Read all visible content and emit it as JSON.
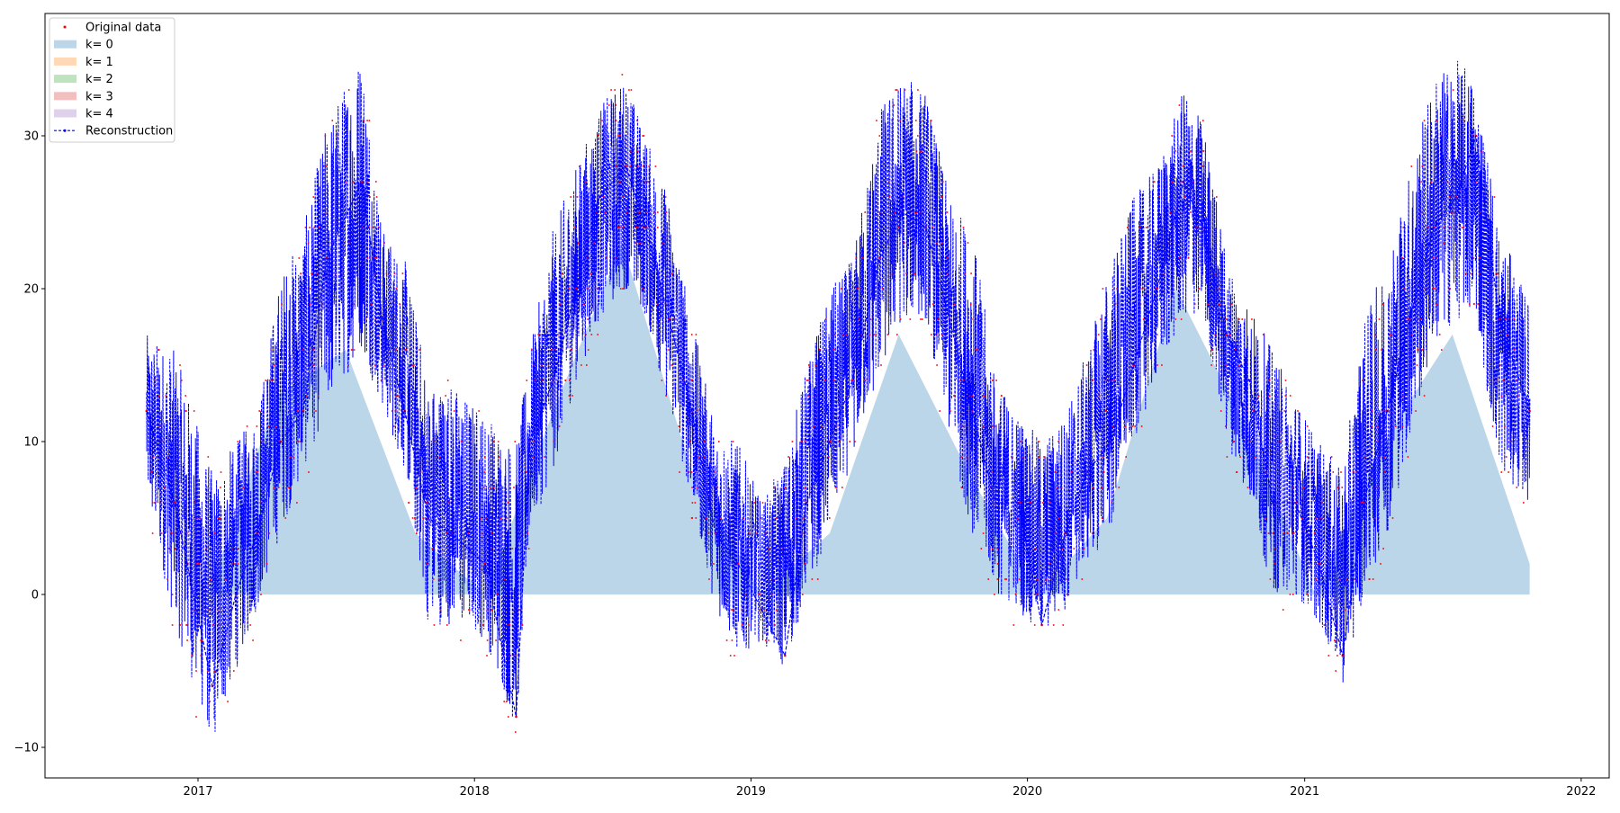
{
  "colors": {
    "original_data": "#ff0000",
    "k0": "#1f77b4",
    "k1": "#ff7f0e",
    "k2": "#2ca02c",
    "k3": "#d62728",
    "k4": "#9467bd",
    "reconstruction": "#0000ff"
  },
  "chart_data": {
    "type": "area",
    "title": "",
    "xlabel": "",
    "ylabel": "",
    "x_unit": "date",
    "xlim": [
      "2016-06-13",
      "2022-02-07"
    ],
    "ylim": [
      -12,
      38
    ],
    "xticks": [
      "2017-01-01",
      "2018-01-01",
      "2019-01-01",
      "2020-01-01",
      "2021-01-01",
      "2022-01-01"
    ],
    "xtick_labels": [
      "2017",
      "2018",
      "2019",
      "2020",
      "2021",
      "2022"
    ],
    "yticks": [
      -10,
      0,
      10,
      20,
      30
    ],
    "ytick_labels": [
      "−10",
      "0",
      "10",
      "20",
      "30"
    ],
    "grid": false,
    "legend_position": "upper-left",
    "legend": [
      "Original data",
      "k= 0",
      "k= 1",
      "k= 2",
      "k= 3",
      "k= 4",
      "Reconstruction"
    ],
    "series": [
      {
        "name": "k= 0",
        "kind": "area",
        "x": [
          "2016-10-25",
          "2017-01-15",
          "2017-04-15",
          "2017-07-15",
          "2017-10-15",
          "2018-01-15",
          "2018-04-15",
          "2018-07-15",
          "2018-10-15",
          "2019-01-15",
          "2019-04-15",
          "2019-07-15",
          "2019-10-15",
          "2020-01-15",
          "2020-04-15",
          "2020-07-15",
          "2020-10-15",
          "2021-01-15",
          "2021-04-15",
          "2021-07-15",
          "2021-10-25"
        ],
        "values": [
          0,
          0,
          13,
          16,
          4,
          0,
          12,
          23,
          8,
          0,
          4,
          17,
          8,
          0,
          5,
          20,
          11,
          0,
          10,
          17,
          2
        ]
      },
      {
        "name": "k= 1",
        "kind": "area",
        "x": [],
        "values": []
      },
      {
        "name": "k= 2",
        "kind": "area",
        "x": [],
        "values": []
      },
      {
        "name": "k= 3",
        "kind": "area",
        "x": [],
        "values": []
      },
      {
        "name": "k= 4",
        "kind": "area",
        "x": [],
        "values": []
      },
      {
        "name": "Original data",
        "kind": "scatter",
        "x": [
          "2016-10-25",
          "2016-12-01",
          "2017-01-20",
          "2017-02-20",
          "2017-03-20",
          "2017-04-20",
          "2017-05-20",
          "2017-06-20",
          "2017-08-05",
          "2017-09-01",
          "2017-10-01",
          "2017-11-01",
          "2017-12-01",
          "2018-01-15",
          "2018-02-25",
          "2018-03-15",
          "2018-04-15",
          "2018-05-15",
          "2018-06-15",
          "2018-07-20",
          "2018-08-15",
          "2018-09-15",
          "2018-10-15",
          "2018-11-15",
          "2018-12-15",
          "2019-01-15",
          "2019-02-15",
          "2019-03-15",
          "2019-04-15",
          "2019-05-15",
          "2019-06-20",
          "2019-07-20",
          "2019-08-20",
          "2019-09-20",
          "2019-10-20",
          "2019-11-20",
          "2019-12-20",
          "2020-01-20",
          "2020-02-20",
          "2020-03-20",
          "2020-04-20",
          "2020-05-20",
          "2020-06-20",
          "2020-07-25",
          "2020-08-20",
          "2020-09-20",
          "2020-10-20",
          "2020-11-20",
          "2020-12-20",
          "2021-01-20",
          "2021-02-20",
          "2021-03-20",
          "2021-04-20",
          "2021-05-20",
          "2021-06-20",
          "2021-07-20",
          "2021-08-15",
          "2021-09-15",
          "2021-10-25"
        ],
        "values": [
          12,
          6,
          -6,
          0,
          4,
          10,
          12,
          22,
          27,
          18,
          12,
          5,
          4,
          2,
          -8,
          10,
          14,
          20,
          26,
          28,
          24,
          18,
          12,
          4,
          2,
          -1,
          -4,
          6,
          10,
          14,
          22,
          25,
          24,
          18,
          12,
          6,
          6,
          -2,
          4,
          8,
          10,
          15,
          20,
          27,
          24,
          17,
          14,
          6,
          6,
          2,
          -4,
          6,
          12,
          18,
          24,
          26,
          30,
          18,
          12
        ]
      },
      {
        "name": "Reconstruction",
        "kind": "line",
        "x": [
          "2016-10-25",
          "2016-12-01",
          "2017-01-20",
          "2017-02-20",
          "2017-03-20",
          "2017-04-20",
          "2017-05-20",
          "2017-06-20",
          "2017-08-05",
          "2017-09-01",
          "2017-10-01",
          "2017-11-01",
          "2017-12-01",
          "2018-01-15",
          "2018-02-25",
          "2018-03-15",
          "2018-04-15",
          "2018-05-15",
          "2018-06-15",
          "2018-07-20",
          "2018-08-15",
          "2018-09-15",
          "2018-10-15",
          "2018-11-15",
          "2018-12-15",
          "2019-01-15",
          "2019-02-15",
          "2019-03-15",
          "2019-04-15",
          "2019-05-15",
          "2019-06-20",
          "2019-07-20",
          "2019-08-20",
          "2019-09-20",
          "2019-10-20",
          "2019-11-20",
          "2019-12-20",
          "2020-01-20",
          "2020-02-20",
          "2020-03-20",
          "2020-04-20",
          "2020-05-20",
          "2020-06-20",
          "2020-07-25",
          "2020-08-20",
          "2020-09-20",
          "2020-10-20",
          "2020-11-20",
          "2020-12-20",
          "2021-01-20",
          "2021-02-20",
          "2021-03-20",
          "2021-04-20",
          "2021-05-20",
          "2021-06-20",
          "2021-07-20",
          "2021-08-15",
          "2021-09-15",
          "2021-10-25"
        ],
        "values": [
          12,
          6,
          -6,
          0,
          4,
          10,
          12,
          22,
          27,
          18,
          12,
          5,
          4,
          2,
          -8,
          10,
          14,
          20,
          26,
          28,
          24,
          18,
          12,
          4,
          2,
          -1,
          -4,
          6,
          10,
          14,
          22,
          25,
          24,
          18,
          12,
          6,
          6,
          -2,
          4,
          8,
          10,
          15,
          20,
          27,
          24,
          17,
          14,
          6,
          6,
          2,
          -4,
          6,
          12,
          18,
          24,
          26,
          30,
          18,
          12
        ],
        "envelope_low": [
          6,
          -2,
          -10,
          -5,
          -1,
          4,
          8,
          12,
          16,
          12,
          8,
          -2,
          -2,
          -3,
          -9,
          4,
          8,
          14,
          18,
          20,
          18,
          12,
          6,
          -1,
          -4,
          -3,
          -5,
          0,
          4,
          9,
          14,
          18,
          18,
          10,
          4,
          0,
          -1,
          -3,
          -1,
          2,
          4,
          10,
          14,
          18,
          18,
          10,
          6,
          0,
          0,
          -2,
          -6,
          0,
          4,
          10,
          16,
          18,
          18,
          8,
          6
        ],
        "envelope_high": [
          17,
          16,
          8,
          10,
          12,
          21,
          24,
          31,
          36,
          24,
          22,
          14,
          14,
          12,
          10,
          16,
          24,
          28,
          32,
          34,
          30,
          26,
          18,
          11,
          10,
          6,
          9,
          15,
          20,
          22,
          32,
          34,
          33,
          26,
          24,
          14,
          12,
          10,
          12,
          16,
          22,
          26,
          28,
          33,
          31,
          22,
          19,
          16,
          13,
          10,
          8,
          18,
          22,
          28,
          34,
          35,
          34,
          24,
          19
        ]
      }
    ]
  }
}
